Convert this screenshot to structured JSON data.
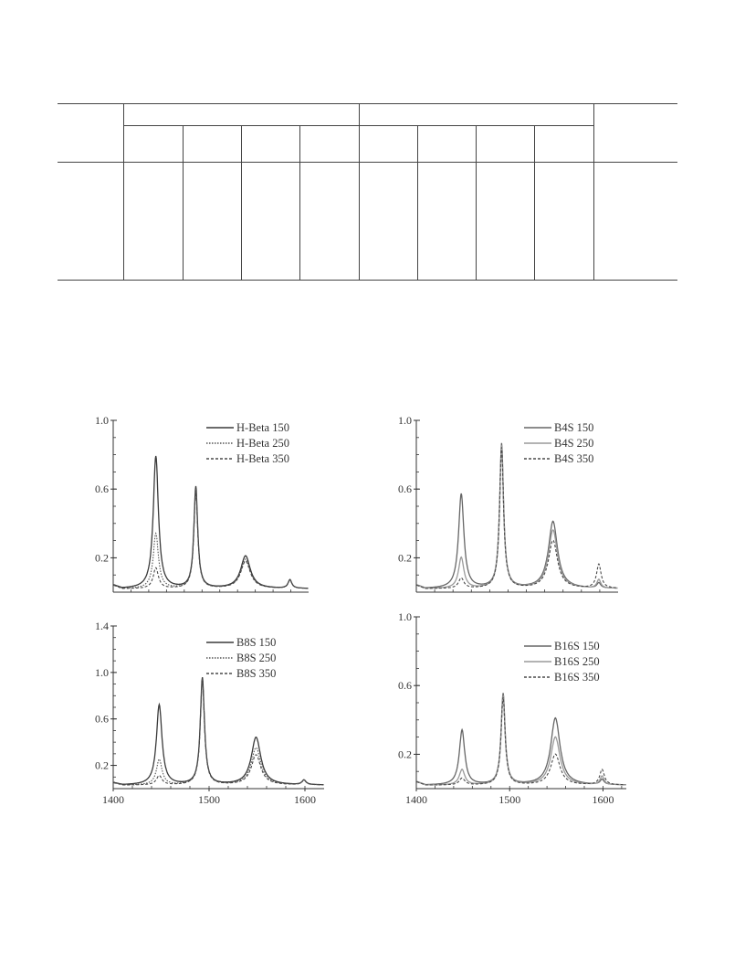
{
  "table": {
    "header_cells": [
      "",
      "",
      "",
      "",
      "",
      "",
      "",
      "",
      "",
      "",
      "",
      ""
    ],
    "body_cells": [
      "",
      "",
      "",
      "",
      "",
      "",
      "",
      "",
      "",
      ""
    ]
  },
  "chart_data": [
    {
      "type": "line",
      "xlim": [
        1400,
        1620
      ],
      "ylim": [
        0,
        1.0
      ],
      "y_ticks": [
        0.2,
        0.6,
        1.0
      ],
      "y_tick_labels": [
        "0.2",
        "0.6",
        "1.0"
      ],
      "x_ticks": [],
      "x_tick_labels": [],
      "legend": "top-right",
      "series": [
        {
          "name": "H-Beta 150",
          "style": "solid",
          "color": "#3a3a3a",
          "baseline": 0.02,
          "peaks": [
            {
              "x": 1448,
              "height": 0.77,
              "width": 3.5
            },
            {
              "x": 1493,
              "height": 0.59,
              "width": 2.6
            },
            {
              "x": 1549,
              "height": 0.19,
              "width": 6.5
            },
            {
              "x": 1599,
              "height": 0.05,
              "width": 2.5
            }
          ]
        },
        {
          "name": "H-Beta 250",
          "style": "dotted",
          "color": "#555555",
          "baseline": 0.02,
          "peaks": [
            {
              "x": 1448,
              "height": 0.32,
              "width": 3.5
            },
            {
              "x": 1493,
              "height": 0.58,
              "width": 2.6
            },
            {
              "x": 1549,
              "height": 0.17,
              "width": 6.5
            },
            {
              "x": 1599,
              "height": 0.05,
              "width": 2.5
            }
          ]
        },
        {
          "name": "H-Beta 350",
          "style": "dashed",
          "color": "#4a4a4a",
          "baseline": 0.02,
          "peaks": [
            {
              "x": 1448,
              "height": 0.12,
              "width": 3.5
            },
            {
              "x": 1493,
              "height": 0.57,
              "width": 2.6
            },
            {
              "x": 1549,
              "height": 0.16,
              "width": 6.5
            },
            {
              "x": 1599,
              "height": 0.05,
              "width": 2.5
            }
          ]
        }
      ]
    },
    {
      "type": "line",
      "xlim": [
        1400,
        1620
      ],
      "ylim": [
        0,
        1.0
      ],
      "y_ticks": [
        0.2,
        0.6,
        1.0
      ],
      "y_tick_labels": [
        "0.2",
        "0.6",
        "1.0"
      ],
      "x_ticks": [],
      "x_tick_labels": [],
      "legend": "top-right",
      "series": [
        {
          "name": "B4S 150",
          "style": "solid",
          "color": "#666666",
          "baseline": 0.02,
          "peaks": [
            {
              "x": 1449,
              "height": 0.55,
              "width": 3.5
            },
            {
              "x": 1493,
              "height": 0.84,
              "width": 2.6
            },
            {
              "x": 1549,
              "height": 0.39,
              "width": 6.0
            },
            {
              "x": 1599,
              "height": 0.03,
              "width": 2.5
            }
          ]
        },
        {
          "name": "B4S 250",
          "style": "solid",
          "color": "#9a9a9a",
          "baseline": 0.02,
          "peaks": [
            {
              "x": 1449,
              "height": 0.18,
              "width": 3.5
            },
            {
              "x": 1493,
              "height": 0.83,
              "width": 2.6
            },
            {
              "x": 1549,
              "height": 0.34,
              "width": 6.0
            },
            {
              "x": 1599,
              "height": 0.05,
              "width": 2.5
            }
          ]
        },
        {
          "name": "B4S 350",
          "style": "dashed",
          "color": "#4a4a4a",
          "baseline": 0.02,
          "peaks": [
            {
              "x": 1449,
              "height": 0.06,
              "width": 3.5
            },
            {
              "x": 1493,
              "height": 0.82,
              "width": 2.6
            },
            {
              "x": 1549,
              "height": 0.28,
              "width": 6.0
            },
            {
              "x": 1599,
              "height": 0.14,
              "width": 3.0
            }
          ]
        }
      ]
    },
    {
      "type": "line",
      "xlim": [
        1400,
        1620
      ],
      "ylim": [
        0,
        1.4
      ],
      "y_ticks": [
        0.2,
        0.6,
        1.0,
        1.4
      ],
      "y_tick_labels": [
        "0.2",
        "0.6",
        "1.0",
        "1.4"
      ],
      "x_ticks": [
        1400,
        1500,
        1600
      ],
      "x_tick_labels": [
        "1400",
        "1500",
        "1600"
      ],
      "legend": "top-right",
      "series": [
        {
          "name": "B8S 150",
          "style": "solid",
          "color": "#3a3a3a",
          "baseline": 0.03,
          "peaks": [
            {
              "x": 1448,
              "height": 0.69,
              "width": 3.5
            },
            {
              "x": 1493,
              "height": 0.92,
              "width": 2.6
            },
            {
              "x": 1549,
              "height": 0.41,
              "width": 6.0
            },
            {
              "x": 1599,
              "height": 0.04,
              "width": 2.5
            }
          ]
        },
        {
          "name": "B8S 250",
          "style": "dotted",
          "color": "#555555",
          "baseline": 0.03,
          "peaks": [
            {
              "x": 1448,
              "height": 0.22,
              "width": 3.5
            },
            {
              "x": 1493,
              "height": 0.91,
              "width": 2.6
            },
            {
              "x": 1549,
              "height": 0.32,
              "width": 6.0
            },
            {
              "x": 1599,
              "height": 0.04,
              "width": 2.5
            }
          ]
        },
        {
          "name": "B8S 350",
          "style": "dashed",
          "color": "#4a4a4a",
          "baseline": 0.03,
          "peaks": [
            {
              "x": 1448,
              "height": 0.08,
              "width": 3.5
            },
            {
              "x": 1493,
              "height": 0.9,
              "width": 2.6
            },
            {
              "x": 1549,
              "height": 0.26,
              "width": 6.0
            },
            {
              "x": 1599,
              "height": 0.04,
              "width": 2.5
            }
          ]
        }
      ]
    },
    {
      "type": "line",
      "xlim": [
        1400,
        1625
      ],
      "ylim": [
        0,
        1.0
      ],
      "y_ticks": [
        0.2,
        0.6,
        1.0
      ],
      "y_tick_labels": [
        "0.2",
        "0.6",
        "1.0"
      ],
      "x_ticks": [
        1400,
        1500,
        1600
      ],
      "x_tick_labels": [
        "1400",
        "1500",
        "1600"
      ],
      "legend": "top-right",
      "series": [
        {
          "name": "B16S 150",
          "style": "solid",
          "color": "#666666",
          "baseline": 0.02,
          "peaks": [
            {
              "x": 1449,
              "height": 0.32,
              "width": 3.5
            },
            {
              "x": 1493,
              "height": 0.53,
              "width": 2.6
            },
            {
              "x": 1549,
              "height": 0.39,
              "width": 6.0
            },
            {
              "x": 1599,
              "height": 0.03,
              "width": 2.5
            }
          ]
        },
        {
          "name": "B16S 250",
          "style": "solid",
          "color": "#9a9a9a",
          "baseline": 0.02,
          "peaks": [
            {
              "x": 1449,
              "height": 0.09,
              "width": 3.5
            },
            {
              "x": 1493,
              "height": 0.52,
              "width": 2.6
            },
            {
              "x": 1549,
              "height": 0.28,
              "width": 6.0
            },
            {
              "x": 1599,
              "height": 0.05,
              "width": 2.5
            }
          ]
        },
        {
          "name": "B16S 350",
          "style": "dashed",
          "color": "#4a4a4a",
          "baseline": 0.02,
          "peaks": [
            {
              "x": 1449,
              "height": 0.04,
              "width": 3.5
            },
            {
              "x": 1493,
              "height": 0.51,
              "width": 2.6
            },
            {
              "x": 1549,
              "height": 0.18,
              "width": 6.0
            },
            {
              "x": 1599,
              "height": 0.09,
              "width": 3.0
            }
          ]
        }
      ]
    }
  ]
}
